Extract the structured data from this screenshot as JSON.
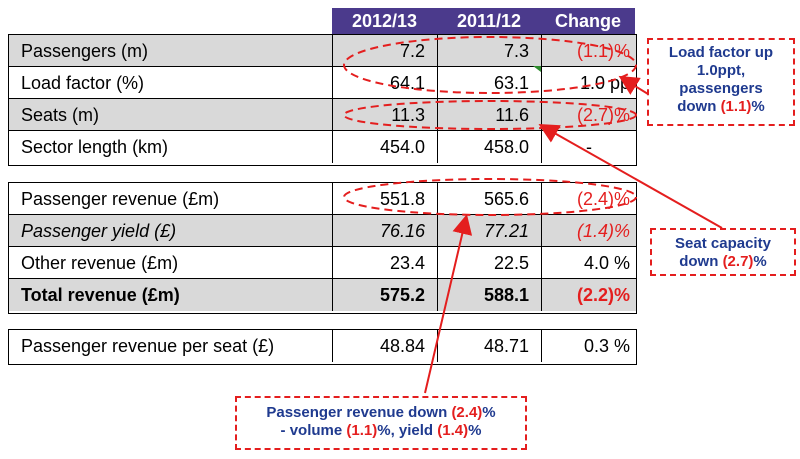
{
  "header": {
    "col1": "2012/13",
    "col2": "2011/12",
    "col3": "Change"
  },
  "table1": [
    {
      "label": "Passengers (m)",
      "v1": "7.2",
      "v2": "7.3",
      "change": "(1.1)%"
    },
    {
      "label": "Load factor (%)",
      "v1": "64.1",
      "v2": "63.1",
      "change": "1.0 pp"
    },
    {
      "label": "Seats (m)",
      "v1": "11.3",
      "v2": "11.6",
      "change": "(2.7)%"
    },
    {
      "label": "Sector length (km)",
      "v1": "454.0",
      "v2": "458.0",
      "change": "-"
    }
  ],
  "table2": [
    {
      "label": "Passenger revenue (£m)",
      "v1": "551.8",
      "v2": "565.6",
      "change": "(2.4)%"
    },
    {
      "label": "Passenger yield (£)",
      "v1": "76.16",
      "v2": "77.21",
      "change": "(1.4)%"
    },
    {
      "label": "Other revenue (£m)",
      "v1": "23.4",
      "v2": "22.5",
      "change": "4.0 %"
    },
    {
      "label": "Total revenue (£m)",
      "v1": "575.2",
      "v2": "588.1",
      "change": "(2.2)%"
    }
  ],
  "table3": [
    {
      "label": "Passenger revenue per seat (£)",
      "v1": "48.84",
      "v2": "48.71",
      "change": "0.3 %"
    }
  ],
  "annotations": {
    "load_factor": {
      "line1": "Load factor up",
      "line2": "1.0ppt,",
      "line3": "passengers",
      "line4_pre": "down ",
      "line4_red": "(1.1)",
      "line4_post": "%"
    },
    "seats": {
      "line1": "Seat capacity",
      "line2_pre": "down ",
      "line2_red": "(2.7)",
      "line2_post": "%"
    },
    "revenue": {
      "line1_pre": "Passenger revenue down ",
      "line1_red": "(2.4)",
      "line1_post": "%",
      "line2_pre": "- volume ",
      "line2_red1": "(1.1)",
      "line2_mid": "%, yield ",
      "line2_red2": "(1.4)",
      "line2_post": "%"
    }
  },
  "colors": {
    "header_bg": "#4b3a8c",
    "shade": "#d9d9d9",
    "accent_red": "#e41e1e",
    "annotation_text": "#1f3a8f"
  }
}
